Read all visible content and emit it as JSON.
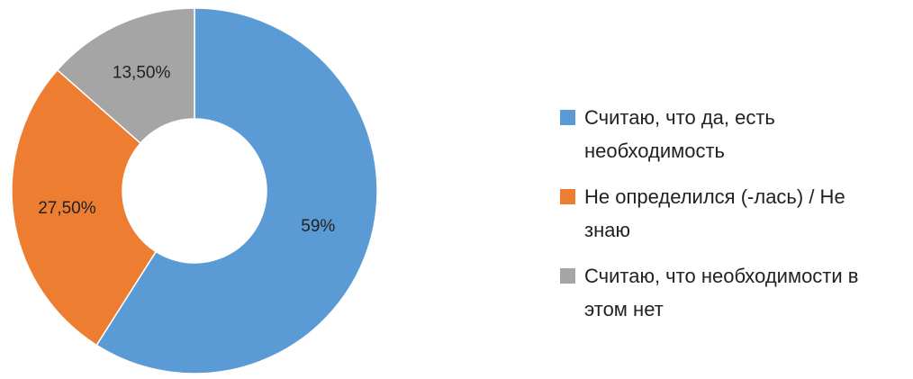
{
  "chart_data": {
    "type": "donut",
    "categories": [
      "Считаю, что да, есть необходимость",
      "Не определился (-лась) / Не знаю",
      "Считаю, что необходимости в этом нет"
    ],
    "values": [
      59,
      27.5,
      13.5
    ],
    "value_labels": [
      "59%",
      "27,50%",
      "13,50%"
    ],
    "colors": [
      "#5b9bd5",
      "#ed7d31",
      "#a5a5a5"
    ],
    "legend": "right"
  }
}
